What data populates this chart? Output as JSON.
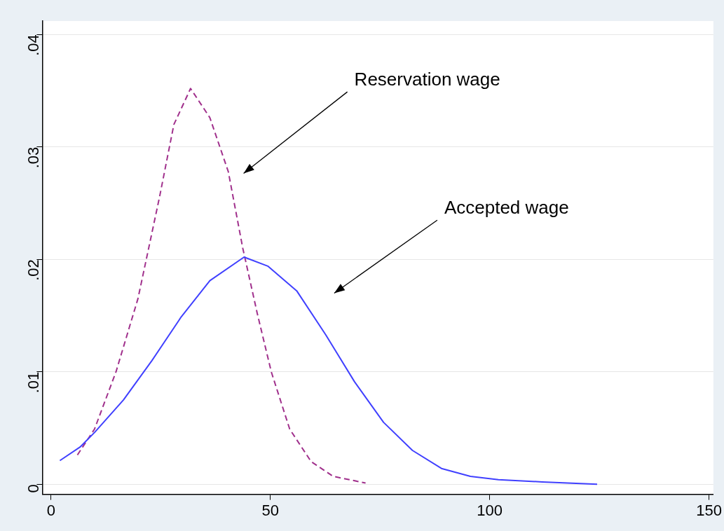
{
  "chart_data": {
    "type": "line",
    "xlim": [
      -2,
      151
    ],
    "ylim": [
      -0.0009,
      0.0412
    ],
    "xticks": [
      0,
      50,
      100,
      150
    ],
    "yticks": [
      {
        "value": 0,
        "label": "0"
      },
      {
        "value": 0.01,
        "label": ".01"
      },
      {
        "value": 0.02,
        "label": ".02"
      },
      {
        "value": 0.03,
        "label": ".03"
      },
      {
        "value": 0.04,
        "label": ".04"
      }
    ],
    "grid": "y",
    "legend": false,
    "marker": "none",
    "series": [
      {
        "color": "#4040ff",
        "line_style": "solid",
        "x": [
          2,
          6.6,
          9.9,
          16.5,
          23,
          29.7,
          36.2,
          44,
          49.4,
          56,
          62.6,
          69.2,
          75.8,
          82.4,
          89,
          95.6,
          102,
          112,
          124.5
        ],
        "values": [
          0.0021,
          0.0033,
          0.0046,
          0.0075,
          0.011,
          0.0149,
          0.0181,
          0.0202,
          0.0194,
          0.0172,
          0.0133,
          0.0091,
          0.0055,
          0.003,
          0.0014,
          0.0007,
          0.0004,
          0.0002,
          0
        ]
      },
      {
        "color": "#a0308c",
        "line_style": "dashed",
        "x": [
          6,
          9.9,
          14.8,
          19.8,
          24.7,
          28,
          31.8,
          36.2,
          40.4,
          43.7,
          47,
          50.2,
          54.4,
          59.3,
          64.3,
          71.7
        ],
        "values": [
          0.0026,
          0.0049,
          0.01,
          0.0165,
          0.0255,
          0.032,
          0.0352,
          0.0326,
          0.0278,
          0.021,
          0.0152,
          0.01,
          0.0049,
          0.002,
          0.0007,
          0.0001
        ]
      }
    ],
    "annotations": [
      "Reservation wage",
      "Accepted wage"
    ]
  }
}
